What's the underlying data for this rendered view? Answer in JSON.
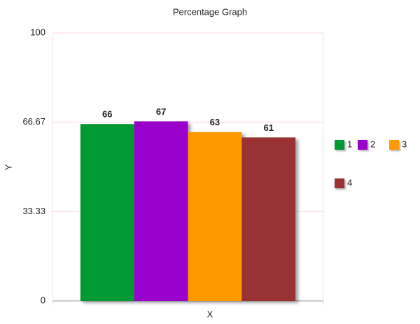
{
  "chart_data": {
    "type": "bar",
    "title": "Percentage Graph",
    "x_label": "X",
    "y_label": "Y",
    "categories": [
      null
    ],
    "series": [
      {
        "name": "1",
        "color": "#009933",
        "values": [
          66
        ]
      },
      {
        "name": "2",
        "color": "#9900cc",
        "values": [
          67
        ]
      },
      {
        "name": "3",
        "color": "#ff9900",
        "values": [
          63
        ]
      },
      {
        "name": "4",
        "color": "#993333",
        "values": [
          61
        ]
      }
    ],
    "ylim": [
      0,
      100
    ],
    "yticks": [
      0,
      33.33,
      66.67,
      100
    ],
    "grid": true,
    "legend": "right"
  }
}
